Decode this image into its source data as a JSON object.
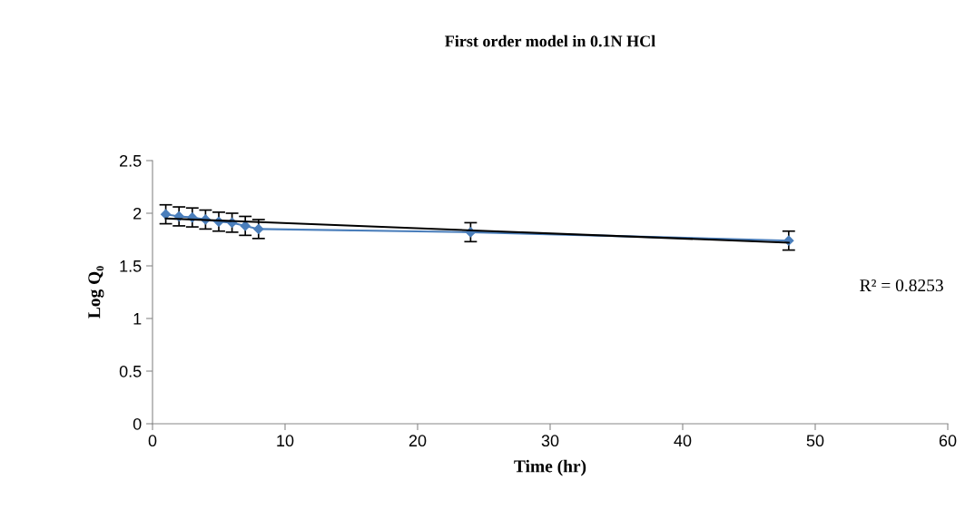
{
  "chart_data": {
    "type": "line",
    "title": "First order model in 0.1N HCl",
    "xlabel": "Time (hr)",
    "ylabel": "Log Q₀",
    "x": [
      1,
      2,
      3,
      4,
      5,
      6,
      7,
      8,
      24,
      48
    ],
    "series": [
      {
        "color": "#4a7ebb",
        "marker": "diamond",
        "values": [
          1.99,
          1.97,
          1.96,
          1.94,
          1.92,
          1.91,
          1.88,
          1.85,
          1.82,
          1.74
        ],
        "errors": [
          0.09,
          0.09,
          0.09,
          0.09,
          0.09,
          0.09,
          0.09,
          0.09,
          0.09,
          0.09
        ]
      },
      {
        "color": "#000000",
        "marker": "none",
        "x": [
          1,
          48
        ],
        "values": [
          1.95,
          1.72
        ]
      }
    ],
    "annotations": [
      "R² = 0.8253"
    ],
    "xlim": [
      0,
      60
    ],
    "xticks": [
      0,
      10,
      20,
      30,
      40,
      50,
      60
    ],
    "ylim": [
      0,
      2.5
    ],
    "yticks": [
      0,
      0.5,
      1,
      1.5,
      2,
      2.5
    ],
    "grid": false
  }
}
